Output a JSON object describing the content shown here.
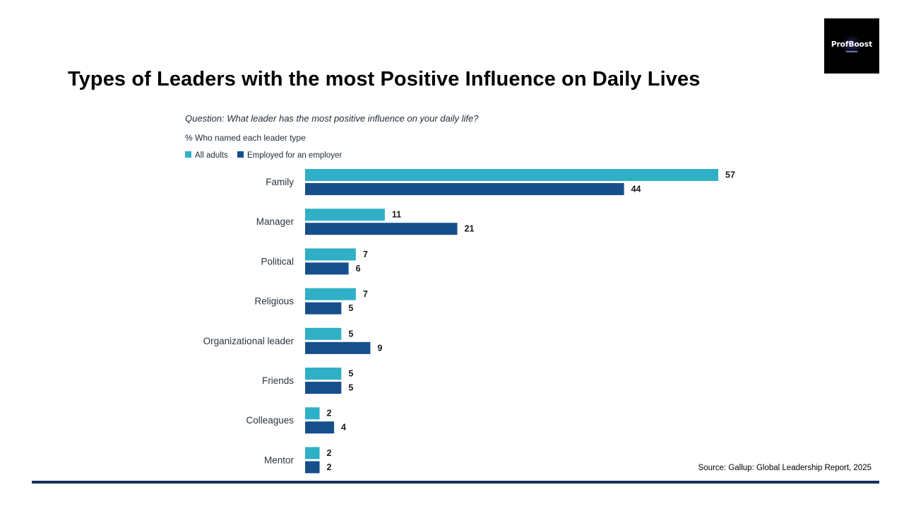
{
  "slide": {
    "title": "Types of Leaders with the most Positive Influence on Daily Lives",
    "logo_text": "ProfBoost",
    "source": "Source: Gallup: Global Leadership Report, 2025"
  },
  "chart_data": {
    "type": "bar",
    "orientation": "horizontal",
    "title": "Question: What leader has the most positive influence on your daily life?",
    "subtitle": "% Who named each leader type",
    "categories": [
      "Family",
      "Manager",
      "Political",
      "Religious",
      "Organizational leader",
      "Friends",
      "Colleagues",
      "Mentor"
    ],
    "series": [
      {
        "name": "All adults",
        "color": "#2fb0c6",
        "values": [
          57,
          11,
          7,
          7,
          5,
          5,
          2,
          2
        ]
      },
      {
        "name": "Employed for an employer",
        "color": "#174f8d",
        "values": [
          44,
          21,
          6,
          5,
          9,
          5,
          4,
          2
        ]
      }
    ],
    "legend_position": "top-left",
    "grid": false,
    "value_labels": true
  }
}
